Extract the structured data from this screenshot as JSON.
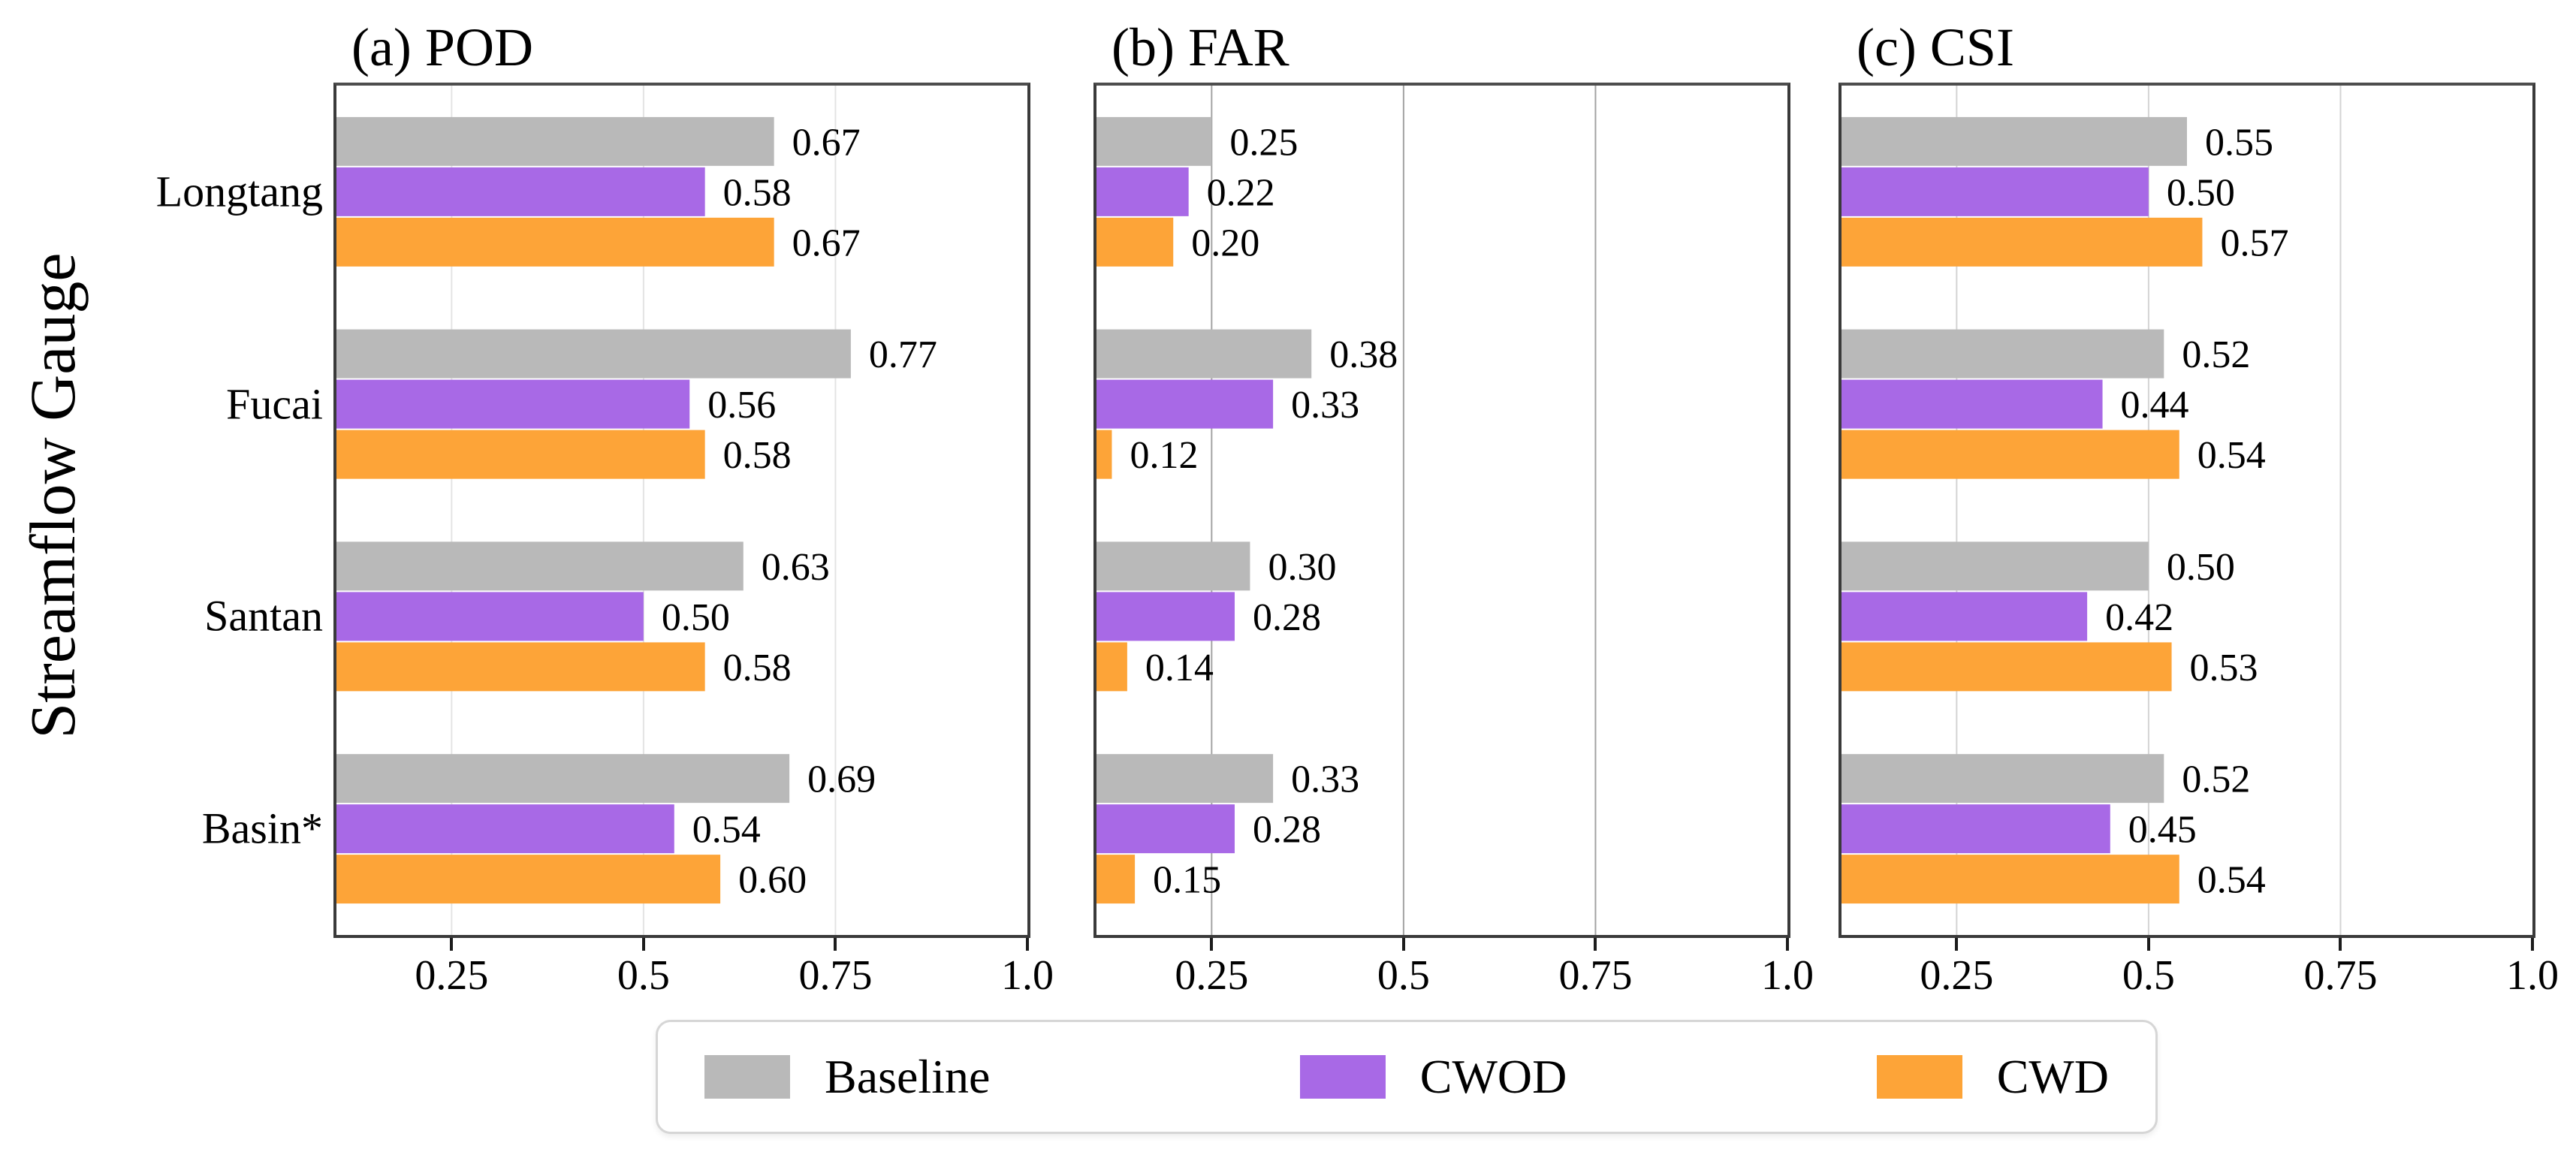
{
  "ylabel": "Streamflow Gauge",
  "categories": [
    "Longtang",
    "Fucai",
    "Santan",
    "Basin*"
  ],
  "series": [
    {
      "name": "Baseline",
      "color": "#b9b9b9"
    },
    {
      "name": "CWOD",
      "color": "#a869e6"
    },
    {
      "name": "CWD",
      "color": "#fda438"
    }
  ],
  "axis": {
    "xlim": [
      0.1,
      1.0
    ],
    "tick_values": [
      0.25,
      0.5,
      0.75,
      1.0
    ],
    "tick_labels": [
      "0.25",
      "0.5",
      "0.75",
      "1.0"
    ]
  },
  "chart_data": [
    {
      "type": "bar",
      "key": "pod",
      "orientation": "horizontal",
      "title": "(a) POD",
      "categories": [
        "Longtang",
        "Fucai",
        "Santan",
        "Basin*"
      ],
      "series": [
        {
          "name": "Baseline",
          "values": [
            0.67,
            0.77,
            0.63,
            0.69
          ]
        },
        {
          "name": "CWOD",
          "values": [
            0.58,
            0.56,
            0.5,
            0.54
          ]
        },
        {
          "name": "CWD",
          "values": [
            0.67,
            0.58,
            0.58,
            0.6
          ]
        }
      ],
      "xlim": [
        0.1,
        1.0
      ],
      "xticks": [
        0.25,
        0.5,
        0.75,
        1.0
      ],
      "grid": true,
      "grid_color": "#e4e4e4",
      "value_labels": true
    },
    {
      "type": "bar",
      "key": "far",
      "orientation": "horizontal",
      "title": "(b) FAR",
      "categories": [
        "Longtang",
        "Fucai",
        "Santan",
        "Basin*"
      ],
      "series": [
        {
          "name": "Baseline",
          "values": [
            0.25,
            0.38,
            0.3,
            0.33
          ]
        },
        {
          "name": "CWOD",
          "values": [
            0.22,
            0.33,
            0.28,
            0.28
          ]
        },
        {
          "name": "CWD",
          "values": [
            0.2,
            0.12,
            0.14,
            0.15
          ]
        }
      ],
      "xlim": [
        0.1,
        1.0
      ],
      "xticks": [
        0.25,
        0.5,
        0.75,
        1.0
      ],
      "grid": true,
      "grid_color": "#a3a3a3",
      "value_labels": true
    },
    {
      "type": "bar",
      "key": "csi",
      "orientation": "horizontal",
      "title": "(c) CSI",
      "categories": [
        "Longtang",
        "Fucai",
        "Santan",
        "Basin*"
      ],
      "series": [
        {
          "name": "Baseline",
          "values": [
            0.55,
            0.52,
            0.5,
            0.52
          ]
        },
        {
          "name": "CWOD",
          "values": [
            0.5,
            0.44,
            0.42,
            0.45
          ]
        },
        {
          "name": "CWD",
          "values": [
            0.57,
            0.54,
            0.53,
            0.54
          ]
        }
      ],
      "xlim": [
        0.1,
        1.0
      ],
      "xticks": [
        0.25,
        0.5,
        0.75,
        1.0
      ],
      "grid": true,
      "grid_color": "#d4d4d4",
      "value_labels": true
    }
  ],
  "legend": {
    "position": "bottom-center"
  }
}
